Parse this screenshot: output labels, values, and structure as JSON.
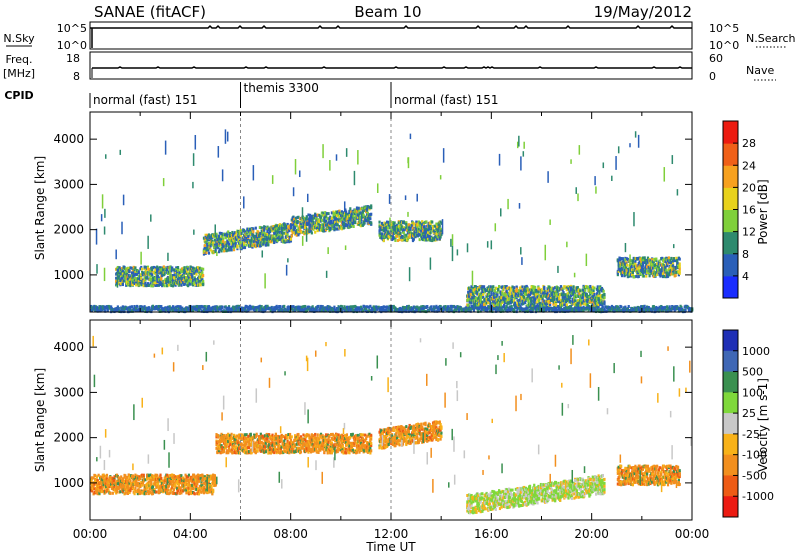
{
  "header": {
    "station": "SANAE (fitACF)",
    "beam": "Beam 10",
    "date": "19/May/2012"
  },
  "noise_panel": {
    "left_label": "N.Sky",
    "right_label": "N.Search",
    "left_ticks": [
      "10^5",
      "10^0"
    ],
    "right_ticks": [
      "10^5",
      "10^0"
    ]
  },
  "freq_panel": {
    "left_label_1": "Freq.",
    "left_label_2": "[MHz]",
    "right_label": "Nave",
    "left_ticks": [
      "18",
      "8"
    ],
    "right_ticks": [
      "60",
      "0"
    ]
  },
  "cpid": {
    "label": "CPID",
    "segments": [
      {
        "name": "normal (fast) 151",
        "start_h": 0,
        "end_h": 6
      },
      {
        "name": "themis 3300",
        "start_h": 6,
        "end_h": 12
      },
      {
        "name": "normal (fast) 151",
        "start_h": 12,
        "end_h": 24
      }
    ]
  },
  "chart_data": [
    {
      "type": "heatmap",
      "title": "",
      "xlabel": "",
      "ylabel": "Slant Range [km]",
      "xlim": [
        0,
        24
      ],
      "ylim": [
        180,
        4600
      ],
      "yticks": [
        "1000",
        "2000",
        "3000",
        "4000"
      ],
      "colorbar": {
        "label": "Power [dB]",
        "ticks": [
          "4",
          "8",
          "12",
          "16",
          "20",
          "24",
          "28"
        ],
        "colors": [
          "#1a2dff",
          "#2a5fb8",
          "#2e8a6e",
          "#7fcf3a",
          "#e8d21c",
          "#f7a11f",
          "#f06018",
          "#ec1b10"
        ]
      },
      "features": [
        {
          "t_start_h": 0.0,
          "t_end_h": 24.0,
          "range_km": 280,
          "level": "weak-moderate"
        },
        {
          "t_start_h": 1.0,
          "t_end_h": 4.5,
          "range_km": 1000,
          "level": "moderate-strong"
        },
        {
          "t_start_h": 4.5,
          "t_end_h": 8.0,
          "range_km": 1700,
          "level": "moderate-strong"
        },
        {
          "t_start_h": 8.0,
          "t_end_h": 11.2,
          "range_km": 2100,
          "level": "moderate-strong"
        },
        {
          "t_start_h": 11.5,
          "t_end_h": 14.0,
          "range_km": 2000,
          "level": "weak-moderate"
        },
        {
          "t_start_h": 15.0,
          "t_end_h": 20.5,
          "range_km": 570,
          "level": "moderate-strong"
        },
        {
          "t_start_h": 21.0,
          "t_end_h": 23.5,
          "range_km": 1200,
          "level": "moderate"
        }
      ]
    },
    {
      "type": "heatmap",
      "title": "",
      "xlabel": "Time UT",
      "ylabel": "Slant Range [km]",
      "xlim": [
        0,
        24
      ],
      "ylim": [
        180,
        4600
      ],
      "xticks": [
        "00:00",
        "04:00",
        "08:00",
        "12:00",
        "16:00",
        "20:00",
        "00:00"
      ],
      "yticks": [
        "1000",
        "2000",
        "3000",
        "4000"
      ],
      "colorbar": {
        "label": "Velocity [m s-1]",
        "ticks": [
          "1000",
          "500",
          "100",
          "25",
          "-25",
          "-100",
          "-500",
          "-1000"
        ],
        "colors": [
          "#1f2fb5",
          "#3f67b5",
          "#3a9050",
          "#7fd83b",
          "#c8c8c8",
          "#f8b219",
          "#f28f1e",
          "#ee5b15",
          "#ec1b12"
        ]
      },
      "features": [
        {
          "t_start_h": 0.0,
          "t_end_h": 5.0,
          "range_km": 1000,
          "velocity": "-100 to -500"
        },
        {
          "t_start_h": 5.0,
          "t_end_h": 11.2,
          "range_km": 1900,
          "velocity": "-100 to -500"
        },
        {
          "t_start_h": 11.5,
          "t_end_h": 14.0,
          "range_km": 2000,
          "velocity": "-100 to -500"
        },
        {
          "t_start_h": 15.0,
          "t_end_h": 20.5,
          "range_km": 560,
          "velocity": "25 to 100"
        },
        {
          "t_start_h": 21.0,
          "t_end_h": 23.5,
          "range_km": 1200,
          "velocity": "-100 to -500"
        }
      ]
    }
  ]
}
